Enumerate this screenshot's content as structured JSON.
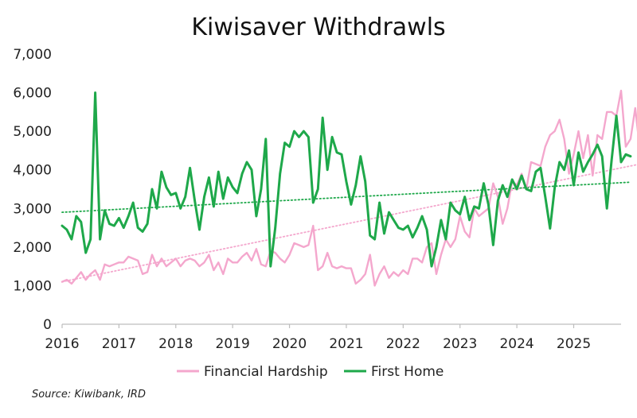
{
  "chart_data": {
    "type": "line",
    "title": "Kiwisaver Withdrawls",
    "source": "Source: Kiwibank, IRD",
    "ylim": [
      0,
      7000
    ],
    "y_ticks": [
      "0",
      "1,000",
      "2,000",
      "3,000",
      "4,000",
      "5,000",
      "6,000",
      "7,000"
    ],
    "y_tick_values": [
      0,
      1000,
      2000,
      3000,
      4000,
      5000,
      6000,
      7000
    ],
    "x_ticks": [
      "2016",
      "2017",
      "2018",
      "2019",
      "2020",
      "2021",
      "2022",
      "2023",
      "2024",
      "2025"
    ],
    "x_tick_years": [
      2016,
      2017,
      2018,
      2019,
      2020,
      2021,
      2022,
      2023,
      2024,
      2025
    ],
    "xlim": [
      "2016-01",
      "2025-11"
    ],
    "grid": false,
    "legend_position": "bottom",
    "series": [
      {
        "name": "Financial Hardship",
        "color": "#f4a7cd",
        "trendline": true,
        "trend_start": 1100,
        "trend_end": 4200,
        "start": "2016-01",
        "values": [
          1100,
          1150,
          1050,
          1200,
          1350,
          1150,
          1300,
          1400,
          1150,
          1550,
          1500,
          1550,
          1600,
          1600,
          1750,
          1700,
          1650,
          1300,
          1350,
          1800,
          1500,
          1700,
          1500,
          1600,
          1700,
          1500,
          1650,
          1700,
          1650,
          1500,
          1600,
          1800,
          1400,
          1600,
          1300,
          1700,
          1600,
          1600,
          1750,
          1850,
          1650,
          1950,
          1550,
          1500,
          1900,
          1850,
          1700,
          1600,
          1800,
          2100,
          2050,
          2000,
          2050,
          2550,
          1400,
          1500,
          1850,
          1500,
          1450,
          1500,
          1450,
          1450,
          1050,
          1150,
          1300,
          1800,
          1000,
          1300,
          1500,
          1200,
          1350,
          1250,
          1400,
          1300,
          1700,
          1700,
          1600,
          2000,
          2100,
          1300,
          1800,
          2200,
          2000,
          2200,
          2800,
          2400,
          2250,
          3000,
          2800,
          2900,
          3000,
          3650,
          3300,
          2600,
          3000,
          3700,
          3600,
          3900,
          3500,
          4200,
          4150,
          4100,
          4600,
          4900,
          5000,
          5300,
          4800,
          3900,
          4400,
          5000,
          4300,
          4900,
          3850,
          4900,
          4800,
          5500,
          5500,
          5400,
          6050,
          4600,
          4800,
          5600,
          4500,
          5100,
          5150
        ]
      },
      {
        "name": "First Home",
        "color": "#1ea84a",
        "trendline": true,
        "trend_start": 2900,
        "trend_end": 3680,
        "start": "2016-01",
        "values": [
          2550,
          2450,
          2200,
          2800,
          2650,
          1850,
          2200,
          6000,
          2200,
          2950,
          2600,
          2550,
          2750,
          2500,
          2800,
          3150,
          2500,
          2400,
          2600,
          3500,
          3000,
          3950,
          3550,
          3350,
          3400,
          3000,
          3300,
          4050,
          3200,
          2450,
          3300,
          3800,
          3050,
          3950,
          3250,
          3800,
          3550,
          3400,
          3900,
          4200,
          4000,
          2800,
          3500,
          4800,
          1500,
          2500,
          3900,
          4700,
          4600,
          5000,
          4850,
          5000,
          4850,
          3150,
          3500,
          5350,
          4000,
          4850,
          4450,
          4400,
          3700,
          3100,
          3600,
          4350,
          3700,
          2300,
          2200,
          3150,
          2350,
          2900,
          2700,
          2500,
          2450,
          2550,
          2250,
          2500,
          2800,
          2450,
          1500,
          2000,
          2700,
          2200,
          3150,
          2950,
          2850,
          3300,
          2700,
          3050,
          3000,
          3650,
          3100,
          2050,
          3200,
          3600,
          3300,
          3750,
          3500,
          3850,
          3500,
          3450,
          3950,
          4050,
          3300,
          2480,
          3550,
          4200,
          4000,
          4500,
          3600,
          4450,
          3950,
          4200,
          4400,
          4650,
          4350,
          3000,
          4250,
          5400,
          4200,
          4400,
          4350
        ]
      }
    ]
  }
}
